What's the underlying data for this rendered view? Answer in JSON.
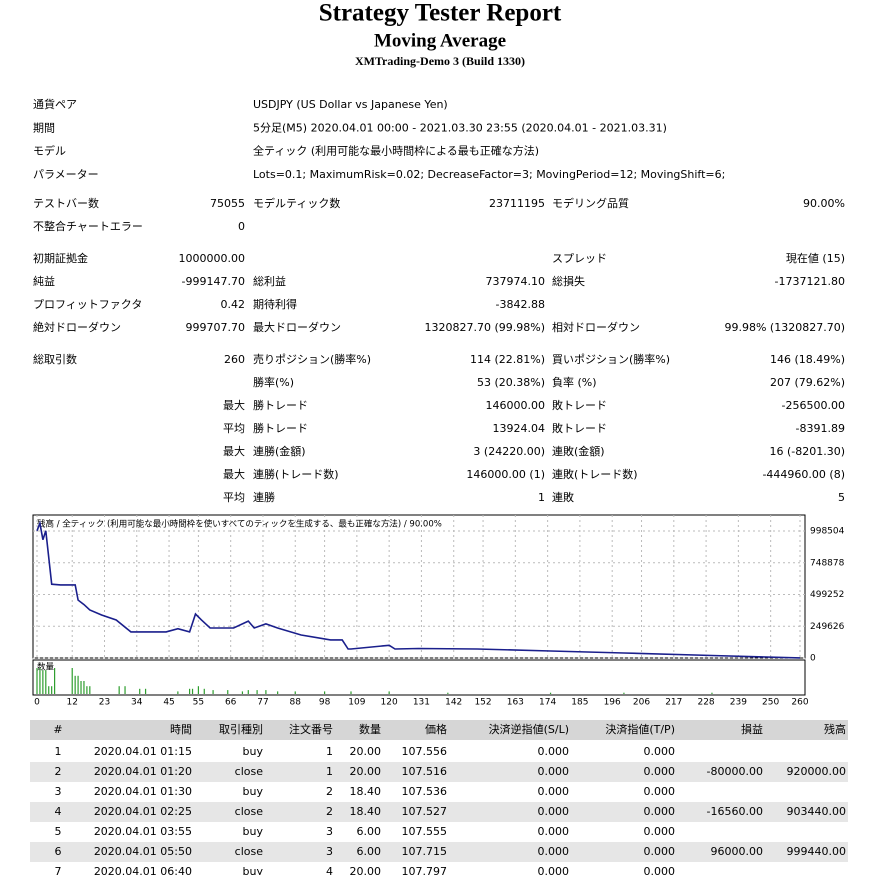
{
  "header": {
    "title": "Strategy Tester Report",
    "subtitle": "Moving Average",
    "build": "XMTrading-Demo 3 (Build 1330)"
  },
  "settings": [
    {
      "label": "通貨ペア",
      "value": "USDJPY (US Dollar vs Japanese Yen)"
    },
    {
      "label": "期間",
      "value": "5分足(M5) 2020.04.01 00:00 - 2021.03.30 23:55 (2020.04.01 - 2021.03.31)"
    },
    {
      "label": "モデル",
      "value": "全ティック (利用可能な最小時間枠による最も正確な方法)"
    },
    {
      "label": "パラメーター",
      "value": "Lots=0.1; MaximumRisk=0.02; DecreaseFactor=3; MovingPeriod=12; MovingShift=6;"
    }
  ],
  "stats": [
    {
      "left": [
        "テストバー数",
        "75055"
      ],
      "mid": [
        "モデルティック数",
        "23711195"
      ],
      "right": [
        "モデリング品質",
        "90.00%"
      ]
    },
    {
      "left": [
        "不整合チャートエラー",
        "0"
      ]
    },
    {
      "left": [
        "初期証拠金",
        "1000000.00"
      ],
      "right": [
        "スプレッド",
        "現在値 (15)"
      ]
    },
    {
      "left": [
        "純益",
        "-999147.70"
      ],
      "mid": [
        "総利益",
        "737974.10"
      ],
      "right": [
        "総損失",
        "-1737121.80"
      ]
    },
    {
      "left": [
        "プロフィットファクタ",
        "0.42"
      ],
      "mid": [
        "期待利得",
        "-3842.88"
      ]
    },
    {
      "left": [
        "絶対ドローダウン",
        "999707.70"
      ],
      "mid": [
        "最大ドローダウン",
        "1320827.70 (99.98%)"
      ],
      "right": [
        "相対ドローダウン",
        "99.98% (1320827.70)"
      ]
    },
    {
      "left": [
        "総取引数",
        "260"
      ],
      "mid": [
        "売りポジション(勝率%)",
        "114 (22.81%)"
      ],
      "right": [
        "買いポジション(勝率%)",
        "146 (18.49%)"
      ]
    },
    {
      "mid": [
        "勝率(%)",
        "53 (20.38%)"
      ],
      "right": [
        "負率 (%)",
        "207 (79.62%)"
      ]
    },
    {
      "qualifier": "最大",
      "mid": [
        "勝トレード",
        "146000.00"
      ],
      "right": [
        "敗トレード",
        "-256500.00"
      ]
    },
    {
      "qualifier": "平均",
      "mid": [
        "勝トレード",
        "13924.04"
      ],
      "right": [
        "敗トレード",
        "-8391.89"
      ]
    },
    {
      "qualifier": "最大",
      "mid": [
        "連勝(金額)",
        "3 (24220.00)"
      ],
      "right": [
        "連敗(金額)",
        "16 (-8201.30)"
      ]
    },
    {
      "qualifier": "最大",
      "mid": [
        "連勝(トレード数)",
        "146000.00 (1)"
      ],
      "right": [
        "連敗(トレード数)",
        "-444960.00 (8)"
      ]
    },
    {
      "qualifier": "平均",
      "mid": [
        "連勝",
        "1"
      ],
      "right": [
        "連敗",
        "5"
      ]
    }
  ],
  "chart_data": [
    {
      "type": "line",
      "title": "残高 / 全ティック (利用可能な最小時間枠を使いすべてのティックを生成する、最も正確な方法) / 90.00%",
      "color": "#1a1f8c",
      "grid": true,
      "x": [
        0,
        1,
        2,
        3,
        5,
        8,
        13,
        14,
        16,
        18,
        22,
        27,
        32,
        37,
        44,
        48,
        52,
        54,
        56,
        59,
        63,
        67,
        72,
        74,
        78,
        82,
        90,
        100,
        104,
        106,
        107,
        120,
        122,
        130,
        150,
        175,
        200,
        230,
        260
      ],
      "values": [
        1000000,
        1060000,
        930000,
        1000000,
        580000,
        575000,
        575000,
        455000,
        420000,
        377000,
        338000,
        299000,
        205000,
        205000,
        205000,
        230000,
        205000,
        346000,
        300000,
        236000,
        236000,
        236000,
        290000,
        236000,
        268000,
        236000,
        181000,
        142000,
        142000,
        71000,
        71000,
        100000,
        71000,
        75000,
        71000,
        55000,
        39000,
        20000,
        852.3
      ],
      "xlim": [
        0,
        260
      ],
      "xticks": [
        0,
        12,
        23,
        34,
        45,
        55,
        66,
        77,
        88,
        98,
        109,
        120,
        131,
        142,
        152,
        163,
        174,
        185,
        196,
        206,
        217,
        228,
        239,
        250,
        260
      ],
      "ylim": [
        0,
        1124300
      ],
      "yticks": [
        0,
        249626,
        499252,
        748878,
        998504
      ]
    },
    {
      "type": "bar",
      "title": "数量",
      "color": "#2e9e2e",
      "xlim": [
        0,
        260
      ],
      "ylim": [
        0,
        20
      ],
      "x": [
        0,
        1,
        2,
        3,
        4,
        5,
        6,
        12,
        13,
        14,
        15,
        16,
        17,
        18,
        28,
        30,
        35,
        37,
        48,
        52,
        53,
        55,
        57,
        60,
        65,
        70,
        72,
        75,
        78,
        82,
        88,
        98,
        107,
        120,
        140,
        175,
        200,
        230
      ],
      "values": [
        20,
        20,
        18.4,
        18.4,
        6,
        6,
        20,
        20,
        14,
        14,
        10,
        10,
        6,
        6,
        6,
        6,
        4,
        4,
        2,
        4,
        4,
        6,
        4,
        3,
        3,
        2,
        3,
        3,
        3,
        2,
        2,
        2,
        2,
        2,
        1,
        1,
        1,
        1
      ]
    }
  ],
  "table": {
    "headers": [
      "#",
      "時間",
      "取引種別",
      "注文番号",
      "数量",
      "価格",
      "決済逆指値(S/L)",
      "決済指値(T/P)",
      "損益",
      "残高"
    ],
    "rows": [
      [
        "1",
        "2020.04.01 01:15",
        "buy",
        "1",
        "20.00",
        "107.556",
        "0.000",
        "0.000"
      ],
      [
        "2",
        "2020.04.01 01:20",
        "close",
        "1",
        "20.00",
        "107.516",
        "0.000",
        "0.000",
        "-80000.00",
        "920000.00"
      ],
      [
        "3",
        "2020.04.01 01:30",
        "buy",
        "2",
        "18.40",
        "107.536",
        "0.000",
        "0.000"
      ],
      [
        "4",
        "2020.04.01 02:25",
        "close",
        "2",
        "18.40",
        "107.527",
        "0.000",
        "0.000",
        "-16560.00",
        "903440.00"
      ],
      [
        "5",
        "2020.04.01 03:55",
        "buy",
        "3",
        "6.00",
        "107.555",
        "0.000",
        "0.000"
      ],
      [
        "6",
        "2020.04.01 05:50",
        "close",
        "3",
        "6.00",
        "107.715",
        "0.000",
        "0.000",
        "96000.00",
        "999440.00"
      ],
      [
        "7",
        "2020.04.01 06:40",
        "buy",
        "4",
        "20.00",
        "107.797",
        "0.000",
        "0.000"
      ]
    ]
  }
}
